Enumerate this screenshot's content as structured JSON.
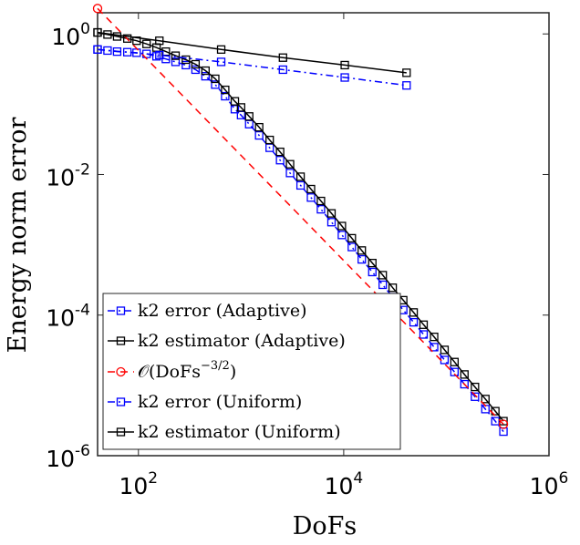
{
  "chart_data": {
    "type": "line",
    "xscale": "log",
    "yscale": "log",
    "xlabel": "DoFs",
    "ylabel": "Energy norm error",
    "xlim": [
      40,
      1000000
    ],
    "ylim": [
      1e-06,
      2
    ],
    "xticks": [
      {
        "base": "10",
        "exp": "2",
        "value": 100
      },
      {
        "base": "10",
        "exp": "4",
        "value": 10000
      },
      {
        "base": "10",
        "exp": "6",
        "value": 1000000
      }
    ],
    "yticks": [
      {
        "label": "10",
        "exp": "0",
        "value": 1
      },
      {
        "label": "10",
        "exp": "-2",
        "value": 0.01
      },
      {
        "label": "10",
        "exp": "-4",
        "value": 0.0001
      },
      {
        "label": "10",
        "exp": "-6",
        "value": 1e-06
      }
    ],
    "legend_position": "bottom-left",
    "series": [
      {
        "name": "k2 error (Adaptive)",
        "color": "#0000ff",
        "dash": "dashdot",
        "marker": "square",
        "x": [
          40,
          50,
          62,
          78,
          96,
          120,
          150,
          185,
          230,
          290,
          360,
          450,
          560,
          700,
          870,
          1000,
          1200,
          1500,
          1900,
          2400,
          3000,
          3800,
          4800,
          6000,
          7600,
          9600,
          12000,
          15000,
          19000,
          24000,
          30000,
          38000,
          48000,
          60000,
          76000,
          96000,
          120000,
          150000,
          190000,
          240000,
          300000,
          360000
        ],
        "y": [
          0.6,
          0.58,
          0.56,
          0.55,
          0.54,
          0.52,
          0.48,
          0.44,
          0.4,
          0.36,
          0.31,
          0.25,
          0.19,
          0.13,
          0.085,
          0.07,
          0.052,
          0.036,
          0.024,
          0.016,
          0.0105,
          0.007,
          0.0047,
          0.0032,
          0.0021,
          0.00138,
          0.00093,
          0.00062,
          0.00041,
          0.00027,
          0.00018,
          0.000118,
          7.9e-05,
          5.3e-05,
          3.5e-05,
          2.3e-05,
          1.55e-05,
          1.04e-05,
          6.9e-06,
          4.6e-06,
          3.1e-06,
          2.2e-06
        ]
      },
      {
        "name": "k2 estimator (Adaptive)",
        "color": "#000000",
        "dash": "solid",
        "marker": "square",
        "x": [
          40,
          50,
          62,
          78,
          96,
          120,
          150,
          185,
          230,
          290,
          360,
          450,
          560,
          700,
          870,
          1000,
          1200,
          1500,
          1900,
          2400,
          3000,
          3800,
          4800,
          6000,
          7600,
          9600,
          12000,
          15000,
          19000,
          24000,
          30000,
          38000,
          48000,
          60000,
          76000,
          96000,
          120000,
          150000,
          190000,
          240000,
          300000,
          360000
        ],
        "y": [
          1.05,
          0.98,
          0.92,
          0.86,
          0.8,
          0.72,
          0.64,
          0.56,
          0.49,
          0.43,
          0.37,
          0.3,
          0.23,
          0.16,
          0.11,
          0.09,
          0.067,
          0.047,
          0.031,
          0.021,
          0.014,
          0.0093,
          0.0062,
          0.0042,
          0.0028,
          0.00185,
          0.00124,
          0.00083,
          0.00055,
          0.00037,
          0.000245,
          0.000163,
          0.000109,
          7.3e-05,
          4.9e-05,
          3.2e-05,
          2.15e-05,
          1.43e-05,
          9.5e-06,
          6.4e-06,
          4.3e-06,
          3.1e-06
        ]
      },
      {
        "name": "O(DoFs^-3/2)",
        "label_main": "𝒪(DoFs",
        "label_exp": "−3/2",
        "label_close": ")",
        "color": "#ff0000",
        "dash": "dashed",
        "marker": "circle",
        "x": [
          40,
          360000
        ],
        "y": [
          2.3,
          2.8e-06
        ]
      },
      {
        "name": "k2 error (Uniform)",
        "color": "#0000ff",
        "dash": "dashdot",
        "marker": "square",
        "x": [
          40,
          160,
          640,
          2560,
          10240,
          40960
        ],
        "y": [
          0.6,
          0.5,
          0.4,
          0.31,
          0.24,
          0.185
        ]
      },
      {
        "name": "k2 estimator (Uniform)",
        "color": "#000000",
        "dash": "solid",
        "marker": "square",
        "x": [
          40,
          160,
          640,
          2560,
          10240,
          40960
        ],
        "y": [
          1.05,
          0.8,
          0.6,
          0.46,
          0.36,
          0.28
        ]
      }
    ]
  }
}
